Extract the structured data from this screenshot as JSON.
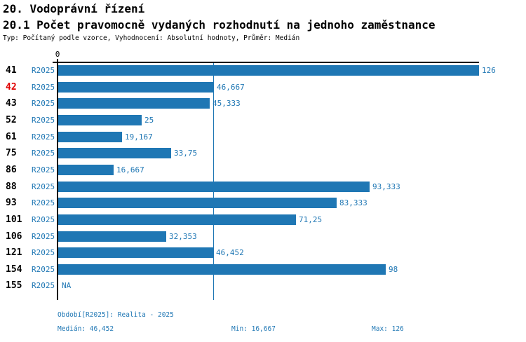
{
  "header": {
    "title": "20. Vodoprávní řízení",
    "subtitle": "20.1 Počet pravomocně vydaných rozhodnutí na jednoho zaměstnance",
    "meta": "Typ: Počítaný podle vzorce, Vyhodnocení: Absolutní hodnoty, Průměr: Medián"
  },
  "chart_data": {
    "type": "bar",
    "orientation": "horizontal",
    "title": "20.1 Počet pravomocně vydaných rozhodnutí na jednoho zaměstnance",
    "x_axis": {
      "tick_label": "0",
      "min": 0,
      "max": 126,
      "grid": false
    },
    "legend_position": "none",
    "median_value": 46.452,
    "rows": [
      {
        "code": "41",
        "period": "R2025",
        "value": 126,
        "label": "126",
        "highlight": false
      },
      {
        "code": "42",
        "period": "R2025",
        "value": 46.667,
        "label": "46,667",
        "highlight": true
      },
      {
        "code": "43",
        "period": "R2025",
        "value": 45.333,
        "label": "45,333",
        "highlight": false
      },
      {
        "code": "52",
        "period": "R2025",
        "value": 25,
        "label": "25",
        "highlight": false
      },
      {
        "code": "61",
        "period": "R2025",
        "value": 19.167,
        "label": "19,167",
        "highlight": false
      },
      {
        "code": "75",
        "period": "R2025",
        "value": 33.75,
        "label": "33,75",
        "highlight": false
      },
      {
        "code": "86",
        "period": "R2025",
        "value": 16.667,
        "label": "16,667",
        "highlight": false
      },
      {
        "code": "88",
        "period": "R2025",
        "value": 93.333,
        "label": "93,333",
        "highlight": false
      },
      {
        "code": "93",
        "period": "R2025",
        "value": 83.333,
        "label": "83,333",
        "highlight": false
      },
      {
        "code": "101",
        "period": "R2025",
        "value": 71.25,
        "label": "71,25",
        "highlight": false
      },
      {
        "code": "106",
        "period": "R2025",
        "value": 32.353,
        "label": "32,353",
        "highlight": false
      },
      {
        "code": "121",
        "period": "R2025",
        "value": 46.452,
        "label": "46,452",
        "highlight": false
      },
      {
        "code": "154",
        "period": "R2025",
        "value": 98,
        "label": "98",
        "highlight": false
      },
      {
        "code": "155",
        "period": "R2025",
        "value": null,
        "label": "NA",
        "highlight": false
      }
    ],
    "colors": {
      "bar": "#1f77b4",
      "value_label": "#1f77b4",
      "period_label": "#1f77b4",
      "median_line": "#1f77b4",
      "row_code": "#000000",
      "row_code_highlight": "#e00000",
      "axis": "#000000"
    }
  },
  "footer": {
    "period_info": "Období[R2025]: Realita - 2025",
    "median": "Medián: 46,452",
    "min": "Min: 16,667",
    "max": "Max: 126"
  }
}
